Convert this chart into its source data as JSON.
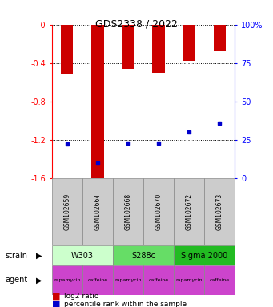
{
  "title": "GDS2338 / 2022",
  "samples": [
    "GSM102659",
    "GSM102664",
    "GSM102668",
    "GSM102670",
    "GSM102672",
    "GSM102673"
  ],
  "log2_ratios": [
    -0.52,
    -1.62,
    -0.46,
    -0.5,
    -0.38,
    -0.28
  ],
  "percentile_ranks": [
    22,
    10,
    23,
    23,
    30,
    36
  ],
  "ylim_left": [
    -1.6,
    0.0
  ],
  "ylim_right": [
    0,
    100
  ],
  "yticks_left": [
    0.0,
    -0.4,
    -0.8,
    -1.2,
    -1.6
  ],
  "ytick_labels_left": [
    "-0",
    "-0.4",
    "-0.8",
    "-1.2",
    "-1.6"
  ],
  "yticks_right": [
    0,
    25,
    50,
    75,
    100
  ],
  "ytick_labels_right": [
    "0",
    "25",
    "50",
    "75",
    "100%"
  ],
  "strains": [
    {
      "label": "W303",
      "cols": [
        0,
        1
      ],
      "color": "#ccffcc"
    },
    {
      "label": "S288c",
      "cols": [
        2,
        3
      ],
      "color": "#66dd66"
    },
    {
      "label": "Sigma 2000",
      "cols": [
        4,
        5
      ],
      "color": "#22bb22"
    }
  ],
  "agent_labels": [
    "rapamycin",
    "caffeine",
    "rapamycin",
    "caffeine",
    "rapamycin",
    "caffeine"
  ],
  "agent_color": "#cc44cc",
  "bar_color": "#cc0000",
  "dot_color": "#0000cc",
  "bar_width": 0.4,
  "sample_box_color": "#cccccc"
}
